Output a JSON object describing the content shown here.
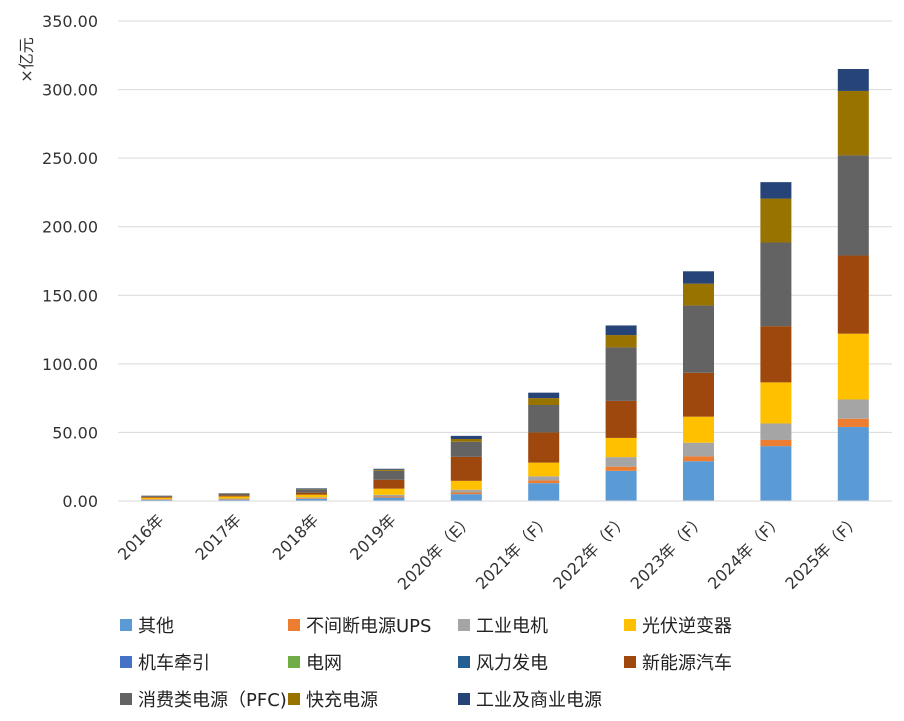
{
  "chart_data": {
    "type": "bar",
    "stacked": true,
    "ylabel": "×亿元",
    "ylim": [
      0,
      350
    ],
    "yticks": [
      "0.00",
      "50.00",
      "100.00",
      "150.00",
      "200.00",
      "250.00",
      "300.00",
      "350.00"
    ],
    "grid": true,
    "legend_position": "bottom",
    "categories": [
      "2016年",
      "2017年",
      "2018年",
      "2019年",
      "2020年（E）",
      "2021年（F）",
      "2022年（F）",
      "2023年（F）",
      "2024年（F）",
      "2025年（F）"
    ],
    "series": [
      {
        "name": "其他",
        "color": "#5B9BD5",
        "values": [
          0.8,
          1.0,
          1.5,
          2.5,
          5.0,
          13.0,
          22.0,
          29.0,
          40.0,
          54.0
        ]
      },
      {
        "name": "不间断电源UPS",
        "color": "#ED7D31",
        "values": [
          0.3,
          0.4,
          0.5,
          0.8,
          1.2,
          2.0,
          3.0,
          3.5,
          4.5,
          6.0
        ]
      },
      {
        "name": "工业电机",
        "color": "#A5A5A5",
        "values": [
          0.3,
          0.4,
          0.6,
          1.2,
          2.0,
          3.0,
          7.0,
          10.0,
          12.0,
          14.0
        ]
      },
      {
        "name": "光伏逆变器",
        "color": "#FFC000",
        "values": [
          1.0,
          1.5,
          2.0,
          4.5,
          6.5,
          10.0,
          14.0,
          19.0,
          30.0,
          48.0
        ]
      },
      {
        "name": "机车牵引",
        "color": "#4472C4",
        "values": [
          0,
          0,
          0,
          0,
          0,
          0,
          0,
          0,
          0,
          0
        ]
      },
      {
        "name": "电网",
        "color": "#70AD47",
        "values": [
          0,
          0,
          0,
          0,
          0,
          0,
          0,
          0,
          0,
          0
        ]
      },
      {
        "name": "风力发电",
        "color": "#255E91",
        "values": [
          0,
          0,
          0,
          0,
          0,
          0,
          0,
          0,
          0,
          0
        ]
      },
      {
        "name": "新能源汽车",
        "color": "#9E480E",
        "values": [
          0.6,
          0.8,
          1.5,
          6.5,
          17.5,
          22.0,
          27.0,
          32.0,
          41.0,
          57.0
        ]
      },
      {
        "name": "消费类电源（PFC)",
        "color": "#636363",
        "values": [
          0.8,
          1.2,
          2.5,
          6.5,
          11.0,
          20.0,
          39.0,
          49.0,
          61.0,
          73.0
        ]
      },
      {
        "name": "快充电源",
        "color": "#997300",
        "values": [
          0.1,
          0.2,
          0.3,
          0.8,
          2.0,
          5.0,
          9.0,
          16.0,
          32.0,
          47.0
        ]
      },
      {
        "name": "工业及商业电源",
        "color": "#264478",
        "values": [
          0.1,
          0.2,
          0.4,
          0.7,
          2.3,
          4.0,
          7.0,
          9.0,
          12.0,
          16.0
        ]
      }
    ]
  }
}
